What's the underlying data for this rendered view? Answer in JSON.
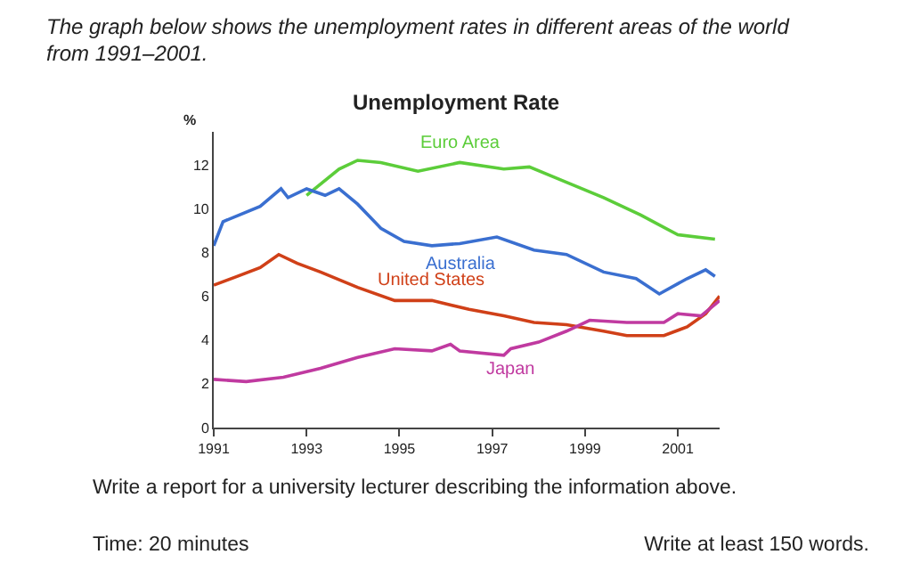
{
  "chart_data": {
    "type": "line",
    "title": "Unemployment Rate",
    "ylabel": "%",
    "annotations": [
      "The graph below shows the unemployment rates in different areas of the world from 1991–2001.",
      "Write a report for a university lecturer describing the information above.",
      "Time: 20 minutes",
      "Write at least 150 words."
    ],
    "xlim": [
      1991,
      2001.9
    ],
    "xticks": [
      1991,
      1993,
      1995,
      1997,
      1999,
      2001
    ],
    "ylim": [
      0,
      13.5
    ],
    "yticks": [
      0,
      2,
      4,
      6,
      8,
      10,
      12
    ],
    "grid": false,
    "legend": false,
    "marker": "none",
    "line_style": "solid",
    "series": [
      {
        "name": "Euro Area",
        "color": "#5ccd3a",
        "x": [
          1993.0,
          1993.7,
          1994.1,
          1994.6,
          1995.4,
          1996.3,
          1997.25,
          1997.8,
          1998.6,
          1999.4,
          2000.2,
          2001.0,
          2001.8
        ],
        "values": [
          10.6,
          11.8,
          12.2,
          12.1,
          11.7,
          12.1,
          11.8,
          11.9,
          11.2,
          10.5,
          9.7,
          8.8,
          8.6
        ]
      },
      {
        "name": "Australia",
        "color": "#3a6fd0",
        "x": [
          1991,
          1991.2,
          1992,
          1992.45,
          1992.6,
          1993,
          1993.4,
          1993.7,
          1994.1,
          1994.6,
          1995.1,
          1995.7,
          1996.3,
          1997.1,
          1997.9,
          1998.6,
          1999.4,
          2000.1,
          2000.6,
          2001.2,
          2001.6,
          2001.8
        ],
        "values": [
          8.3,
          9.4,
          10.1,
          10.9,
          10.5,
          10.9,
          10.6,
          10.9,
          10.2,
          9.1,
          8.5,
          8.3,
          8.4,
          8.7,
          8.1,
          7.9,
          7.1,
          6.8,
          6.1,
          6.8,
          7.2,
          6.9
        ]
      },
      {
        "name": "United States",
        "color": "#d04018",
        "x": [
          1991,
          1991.5,
          1992,
          1992.4,
          1992.8,
          1993.3,
          1994.1,
          1994.9,
          1995.7,
          1996.5,
          1997.25,
          1997.9,
          1998.6,
          1999.4,
          1999.9,
          2000.7,
          2001.2,
          2001.6,
          2001.9
        ],
        "values": [
          6.5,
          6.9,
          7.3,
          7.9,
          7.5,
          7.1,
          6.4,
          5.8,
          5.8,
          5.4,
          5.1,
          4.8,
          4.7,
          4.4,
          4.2,
          4.2,
          4.6,
          5.2,
          6.0
        ]
      },
      {
        "name": "Japan",
        "color": "#c03aa0",
        "x": [
          1991,
          1991.7,
          1992.5,
          1993.3,
          1994.1,
          1994.9,
          1995.7,
          1996.1,
          1996.3,
          1997.25,
          1997.4,
          1998.0,
          1998.6,
          1999.1,
          1999.9,
          2000.7,
          2001.0,
          2001.5,
          2001.9
        ],
        "values": [
          2.2,
          2.1,
          2.3,
          2.7,
          3.2,
          3.6,
          3.5,
          3.8,
          3.5,
          3.3,
          3.6,
          3.9,
          4.4,
          4.9,
          4.8,
          4.8,
          5.2,
          5.1,
          5.8
        ]
      }
    ]
  }
}
